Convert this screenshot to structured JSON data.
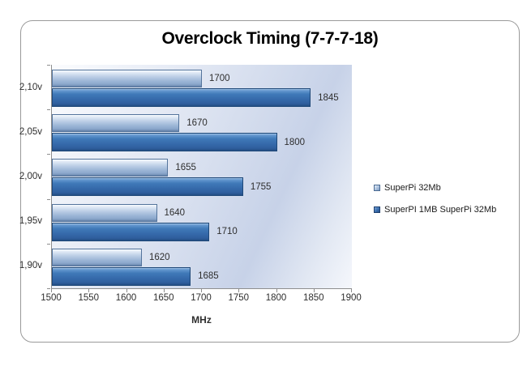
{
  "chart_data": {
    "type": "bar",
    "orientation": "horizontal",
    "title": "Overclock Timing (7-7-7-18)",
    "xlabel": "MHz",
    "categories": [
      "2,10v",
      "2,05v",
      "2,00v",
      "1,95v",
      "1,90v"
    ],
    "series": [
      {
        "name": "SuperPi 32Mb",
        "color": "#a9c0dd",
        "values": [
          1700,
          1670,
          1655,
          1640,
          1620
        ]
      },
      {
        "name": "SuperPI 1MB SuperPi 32Mb",
        "color": "#3a6fb0",
        "values": [
          1845,
          1800,
          1755,
          1710,
          1685
        ]
      }
    ],
    "xlim": [
      1500,
      1900
    ],
    "xticks": [
      1500,
      1550,
      1600,
      1650,
      1700,
      1750,
      1800,
      1850,
      1900
    ],
    "grid": false,
    "show_data_labels": true,
    "legend_position": "right"
  },
  "colors": {
    "axis": "#8e8e8e",
    "frame_border": "#9a9a9a",
    "series1_light_blue": "#a9c0dd",
    "series2_dark_blue": "#3a6fb0"
  }
}
